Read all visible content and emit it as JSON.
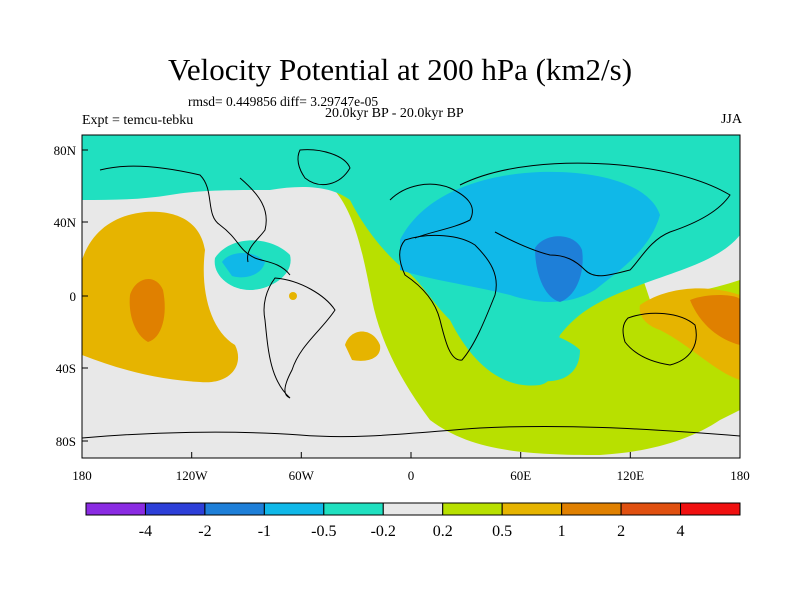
{
  "figure": {
    "title": "Velocity Potential at 200 hPa (km2/s)",
    "stats": "rmsd= 0.449856 diff= 3.29747e-05",
    "time_range": "20.0kyr BP - 20.0kyr BP",
    "experiment": "Expt = temcu-tebku",
    "season": "JJA"
  },
  "axes": {
    "lon_ticks": [
      "180",
      "120W",
      "60W",
      "0",
      "60E",
      "120E",
      "180"
    ],
    "lat_ticks": [
      "80N",
      "40N",
      "0",
      "40S",
      "80S"
    ]
  },
  "colorbar": {
    "labels": [
      "-4",
      "-2",
      "-1",
      "-0.5",
      "-0.2",
      "0.2",
      "0.5",
      "1",
      "2",
      "4"
    ],
    "colors": [
      "#8a2be2",
      "#2d3fd8",
      "#1e7fd8",
      "#10b8e8",
      "#20e0c0",
      "#e8e8e8",
      "#b8e000",
      "#e6b400",
      "#e08000",
      "#e05010",
      "#f01010"
    ]
  },
  "map_colors": {
    "ocean_background": "#b8e000",
    "neutral": "#e8e8e8",
    "weak_negative": "#20e0c0",
    "moderate_negative": "#10b8e8",
    "strong_negative": "#1e7fd8",
    "weak_positive": "#e6b400",
    "moderate_positive": "#e08000"
  }
}
